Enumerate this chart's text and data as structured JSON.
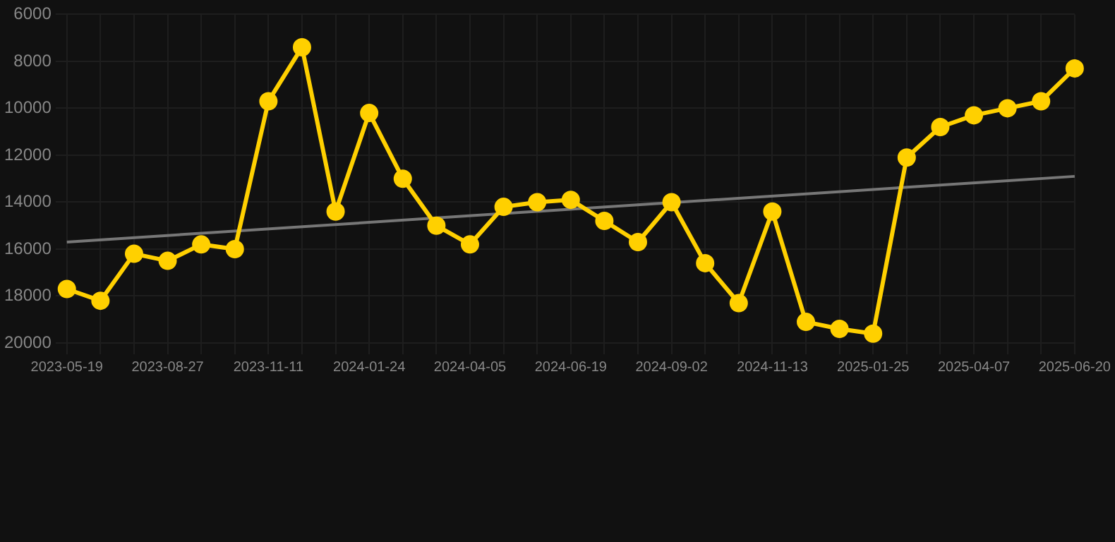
{
  "chart_data": {
    "type": "line",
    "categories": [
      "2023-05-19",
      null,
      null,
      "2023-08-27",
      null,
      null,
      "2023-11-11",
      null,
      null,
      "2024-01-24",
      null,
      null,
      "2024-04-05",
      null,
      null,
      "2024-06-19",
      null,
      null,
      "2024-09-02",
      null,
      null,
      "2024-11-13",
      null,
      null,
      "2025-01-25",
      null,
      null,
      "2025-04-07",
      null,
      null,
      "2025-06-20"
    ],
    "series": [
      {
        "color": "#ffd000",
        "marker": "circle",
        "values": [
          17700,
          18200,
          16200,
          16500,
          15800,
          16000,
          9700,
          7400,
          14400,
          10200,
          13000,
          15000,
          15800,
          14200,
          14000,
          13900,
          14800,
          15700,
          14000,
          16600,
          18300,
          14400,
          19100,
          19400,
          19600,
          12100,
          10800,
          10300,
          10000,
          9700,
          8300
        ]
      },
      {
        "type": "line",
        "color": "#777777",
        "marker": "none",
        "values": [
          15700,
          null,
          null,
          null,
          null,
          null,
          null,
          null,
          null,
          null,
          null,
          null,
          null,
          null,
          null,
          null,
          null,
          null,
          null,
          null,
          null,
          null,
          null,
          null,
          null,
          null,
          null,
          null,
          null,
          null,
          12900
        ]
      }
    ],
    "ylim": [
      20000,
      6000
    ],
    "yticks": [
      6000,
      8000,
      10000,
      12000,
      14000,
      16000,
      18000,
      20000
    ],
    "grid": true,
    "legend": false
  }
}
